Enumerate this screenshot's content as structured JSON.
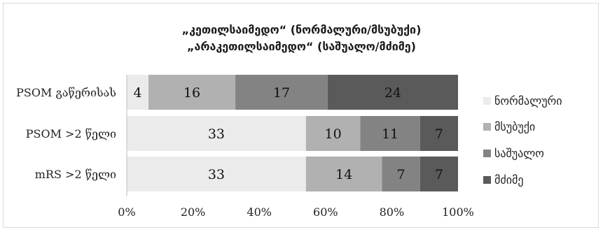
{
  "chart_data": {
    "type": "bar",
    "orientation": "horizontal",
    "stacked": "percent",
    "title_lines": [
      "„კეთილსაიმედო“ (ნორმალური/მსუბუქი)",
      "„არაკეთილსაიმედო“ (საშუალო/მძიმე)"
    ],
    "categories": [
      "PSOM გაწერისას",
      "PSOM >2 წელი",
      "mRS >2 წელი"
    ],
    "series": [
      {
        "name": "ნორმალური",
        "values": [
          4,
          33,
          33
        ],
        "color": "#ebebeb"
      },
      {
        "name": "მსუბუქი",
        "values": [
          16,
          10,
          14
        ],
        "color": "#b1b1b1"
      },
      {
        "name": "საშუალო",
        "values": [
          17,
          11,
          7
        ],
        "color": "#838383"
      },
      {
        "name": "მძიმე",
        "values": [
          24,
          7,
          7
        ],
        "color": "#5a5a5a"
      }
    ],
    "x_ticks": [
      "0%",
      "20%",
      "40%",
      "60%",
      "80%",
      "100%"
    ],
    "xlim": [
      0,
      100
    ],
    "grid": false,
    "legend_position": "right"
  }
}
